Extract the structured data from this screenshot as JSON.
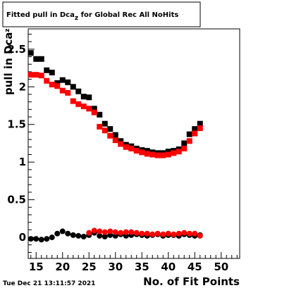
{
  "chart_data": {
    "type": "scatter",
    "title": "Fitted pull in Dca",
    "title_sub": "z",
    "title_rest": " for Global Rec All NoHits",
    "xlabel": "No. of Fit Points",
    "ylabel": "pull in Dca",
    "ylabel_sub": "z",
    "timestamp": "Tue Dec 21 13:11:57 2021",
    "xlim": [
      13.5,
      53.5
    ],
    "ylim": [
      -0.28,
      2.77
    ],
    "x_ticks": [
      "15",
      "20",
      "25",
      "30",
      "35",
      "40",
      "45",
      "50"
    ],
    "y_ticks": [
      "0",
      "0.5",
      "1",
      "1.5",
      "2",
      "2.5"
    ],
    "x_tick_values": [
      15,
      20,
      25,
      30,
      35,
      40,
      45,
      50
    ],
    "y_tick_values": [
      0,
      0.5,
      1,
      1.5,
      2,
      2.5
    ],
    "grid": false,
    "legend": "none",
    "series": [
      {
        "color": "#000000",
        "points": [
          [
            14,
            2.45
          ],
          [
            15,
            2.37
          ],
          [
            16,
            2.37
          ],
          [
            17,
            2.22
          ],
          [
            18,
            2.19
          ],
          [
            19,
            2.05
          ],
          [
            20,
            2.09
          ],
          [
            21,
            2.06
          ],
          [
            22,
            2.0
          ],
          [
            23,
            1.94
          ],
          [
            24,
            1.87
          ],
          [
            25,
            1.86
          ],
          [
            26,
            1.71
          ],
          [
            27,
            1.63
          ],
          [
            28,
            1.51
          ],
          [
            29,
            1.44
          ],
          [
            30,
            1.36
          ],
          [
            31,
            1.28
          ],
          [
            32,
            1.23
          ],
          [
            33,
            1.21
          ],
          [
            34,
            1.18
          ],
          [
            35,
            1.16
          ],
          [
            36,
            1.15
          ],
          [
            37,
            1.13
          ],
          [
            38,
            1.12
          ],
          [
            39,
            1.12
          ],
          [
            40,
            1.14
          ],
          [
            41,
            1.15
          ],
          [
            42,
            1.17
          ],
          [
            43,
            1.25
          ],
          [
            44,
            1.37
          ],
          [
            45,
            1.44
          ],
          [
            46,
            1.51
          ]
        ]
      },
      {
        "color": "#ff0000",
        "points": [
          [
            14,
            2.16
          ],
          [
            15,
            2.16
          ],
          [
            16,
            2.15
          ],
          [
            17,
            2.08
          ],
          [
            18,
            2.03
          ],
          [
            19,
            2.01
          ],
          [
            20,
            1.95
          ],
          [
            21,
            1.92
          ],
          [
            22,
            1.81
          ],
          [
            23,
            1.77
          ],
          [
            24,
            1.74
          ],
          [
            25,
            1.71
          ],
          [
            26,
            1.66
          ],
          [
            27,
            1.47
          ],
          [
            28,
            1.42
          ],
          [
            29,
            1.35
          ],
          [
            30,
            1.29
          ],
          [
            31,
            1.24
          ],
          [
            32,
            1.2
          ],
          [
            33,
            1.18
          ],
          [
            34,
            1.15
          ],
          [
            35,
            1.13
          ],
          [
            36,
            1.11
          ],
          [
            37,
            1.1
          ],
          [
            38,
            1.09
          ],
          [
            39,
            1.09
          ],
          [
            40,
            1.1
          ],
          [
            41,
            1.12
          ],
          [
            42,
            1.14
          ],
          [
            43,
            1.18
          ],
          [
            44,
            1.28
          ],
          [
            45,
            1.38
          ],
          [
            46,
            1.45
          ]
        ]
      },
      {
        "color": "#000000",
        "marker": "circle",
        "points": [
          [
            14,
            -0.02
          ],
          [
            15,
            -0.02
          ],
          [
            16,
            -0.03
          ],
          [
            17,
            -0.02
          ],
          [
            18,
            0.0
          ],
          [
            19,
            0.05
          ],
          [
            20,
            0.08
          ],
          [
            21,
            0.05
          ],
          [
            22,
            0.03
          ],
          [
            23,
            0.02
          ],
          [
            24,
            0.01
          ],
          [
            25,
            0.03
          ],
          [
            26,
            0.06
          ],
          [
            27,
            0.02
          ],
          [
            28,
            0.01
          ],
          [
            29,
            0.03
          ],
          [
            30,
            0.02
          ],
          [
            31,
            0.04
          ],
          [
            32,
            0.02
          ],
          [
            33,
            0.03
          ],
          [
            34,
            0.04
          ],
          [
            35,
            0.03
          ],
          [
            36,
            0.02
          ],
          [
            37,
            0.03
          ],
          [
            38,
            0.04
          ],
          [
            39,
            0.02
          ],
          [
            40,
            0.03
          ],
          [
            41,
            0.03
          ],
          [
            42,
            0.02
          ],
          [
            43,
            0.04
          ],
          [
            44,
            0.03
          ],
          [
            45,
            0.02
          ],
          [
            46,
            0.03
          ]
        ]
      },
      {
        "color": "#ff0000",
        "marker": "circle",
        "points": [
          [
            25,
            0.06
          ],
          [
            26,
            0.09
          ],
          [
            27,
            0.08
          ],
          [
            28,
            0.07
          ],
          [
            29,
            0.08
          ],
          [
            30,
            0.07
          ],
          [
            31,
            0.06
          ],
          [
            32,
            0.07
          ],
          [
            33,
            0.07
          ],
          [
            34,
            0.06
          ],
          [
            35,
            0.05
          ],
          [
            36,
            0.05
          ],
          [
            37,
            0.04
          ],
          [
            38,
            0.05
          ],
          [
            39,
            0.04
          ],
          [
            40,
            0.05
          ],
          [
            41,
            0.04
          ],
          [
            42,
            0.05
          ],
          [
            43,
            0.06
          ],
          [
            44,
            0.05
          ],
          [
            45,
            0.05
          ],
          [
            46,
            0.02
          ]
        ]
      }
    ]
  }
}
